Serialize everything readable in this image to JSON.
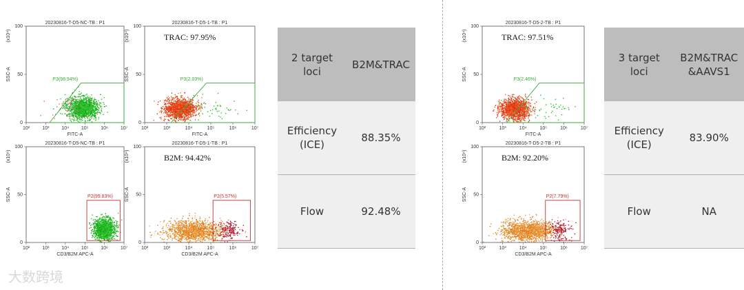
{
  "axes": {
    "y_label": "SSC-A",
    "y_unit": "(x10⁴)",
    "y_ticks": [
      "0",
      "50",
      "100"
    ],
    "x_ticks": [
      "10²",
      "10³",
      "10⁴",
      "10⁵",
      "10⁶",
      "10⁷"
    ]
  },
  "left": {
    "plots": [
      {
        "title": "20230816-T-D5-NC-TB : P1",
        "gate": "P3(98.94%)",
        "x_label": "FITC-A"
      },
      {
        "title": "20230816-T-D5-1-TB : P1",
        "annotation": "TRAC: 97.95%",
        "gate": "P3(2.03%)",
        "x_label": "FITC-A"
      },
      {
        "title": "20230816-T-D5-NC-TB : P1",
        "gate": "P2(99.83%)",
        "x_label": "CD3/B2M APC-A"
      },
      {
        "title": "20230816-T-D5-1-TB : P1",
        "annotation": "B2M: 94.42%",
        "gate": "P2(5.57%)",
        "x_label": "CD3/B2M APC-A"
      }
    ],
    "table": {
      "rows": [
        [
          "2 target loci",
          "B2M&TRAC"
        ],
        [
          "Efficiency (ICE)",
          "88.35%"
        ],
        [
          "Flow",
          "92.48%"
        ]
      ]
    }
  },
  "right": {
    "plots": [
      {
        "title": "20230816-T-D5-2-TB : P1",
        "annotation": "TRAC: 97.51%",
        "gate": "P3(2.46%)",
        "x_label": "FITC-A"
      },
      {
        "title": "20230816-T-D5-2-TB : P1",
        "annotation": "B2M: 92.20%",
        "gate": "P2(7.79%)",
        "x_label": "CD3/B2M APC-A"
      }
    ],
    "table": {
      "rows": [
        [
          "3 target loci",
          "B2M&TRAC&AAVS1"
        ],
        [
          "Efficiency (ICE)",
          "83.90%"
        ],
        [
          "Flow",
          "NA"
        ]
      ]
    }
  },
  "watermark": "大数跨境"
}
